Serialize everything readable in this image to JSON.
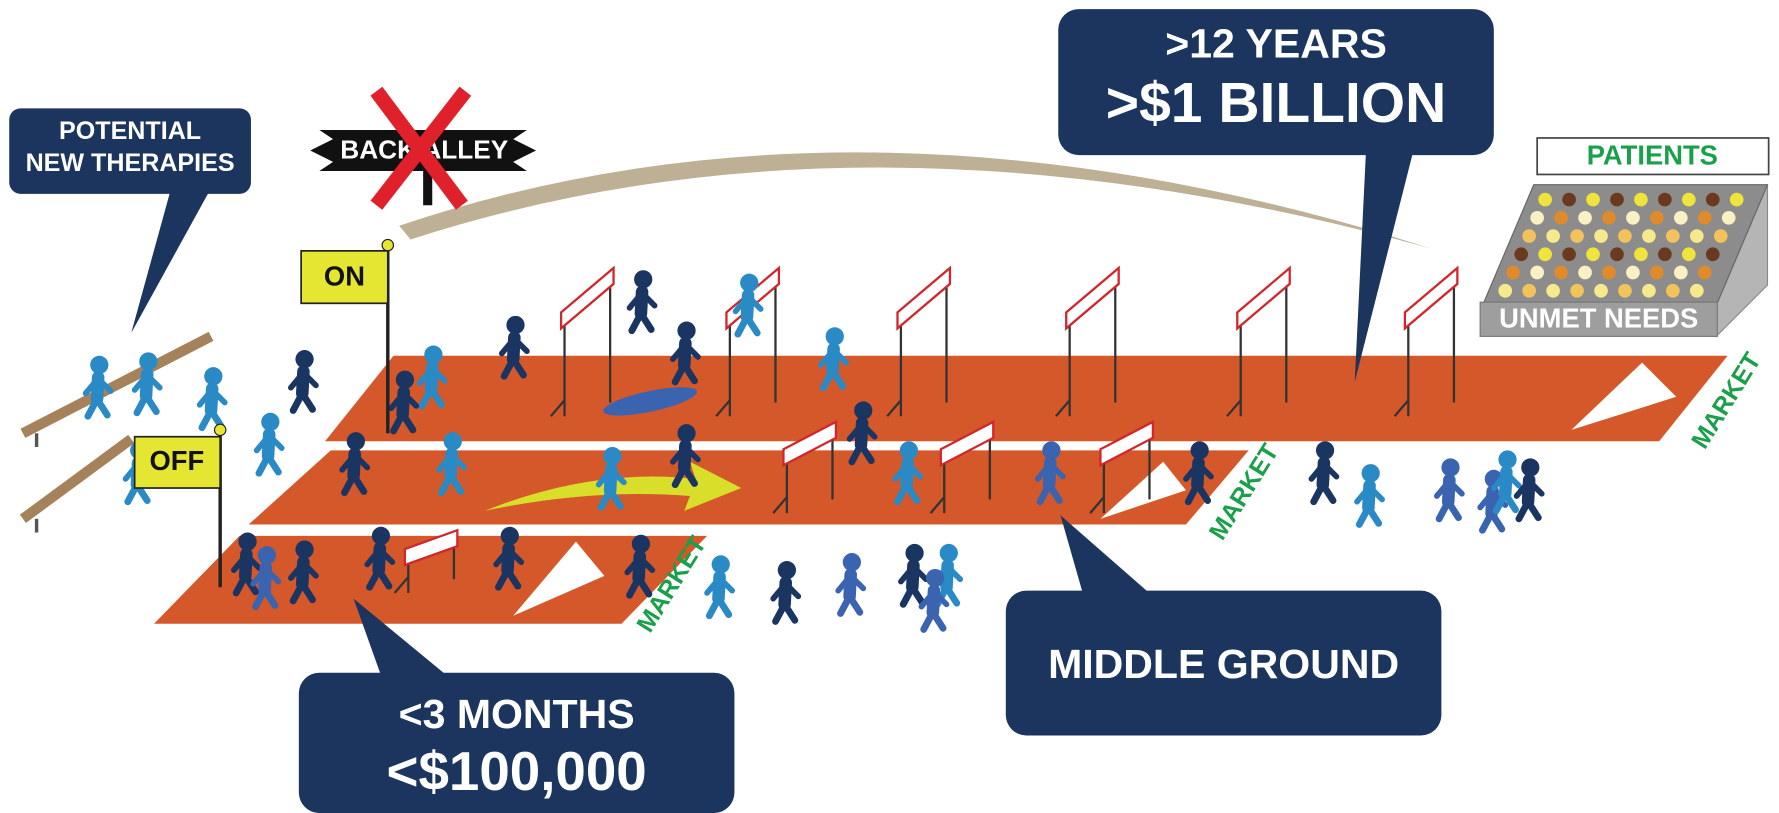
{
  "callouts": {
    "potential": {
      "lines": [
        "POTENTIAL",
        "NEW THERAPIES"
      ]
    },
    "long_track": {
      "lines": [
        ">12 YEARS",
        ">$1 BILLION"
      ]
    },
    "middle_track": {
      "label": "MIDDLE GROUND"
    },
    "short_track": {
      "lines": [
        "<3 MONTHS",
        "<$100,000"
      ]
    }
  },
  "signs": {
    "back_alley": "BACK ALLEY",
    "on": "ON",
    "off": "OFF"
  },
  "stands": {
    "title": "PATIENTS",
    "label": "UNMET NEEDS"
  },
  "tracks": [
    {
      "finish": "MARKET"
    },
    {
      "finish": "MARKET"
    },
    {
      "finish": "MARKET"
    }
  ]
}
